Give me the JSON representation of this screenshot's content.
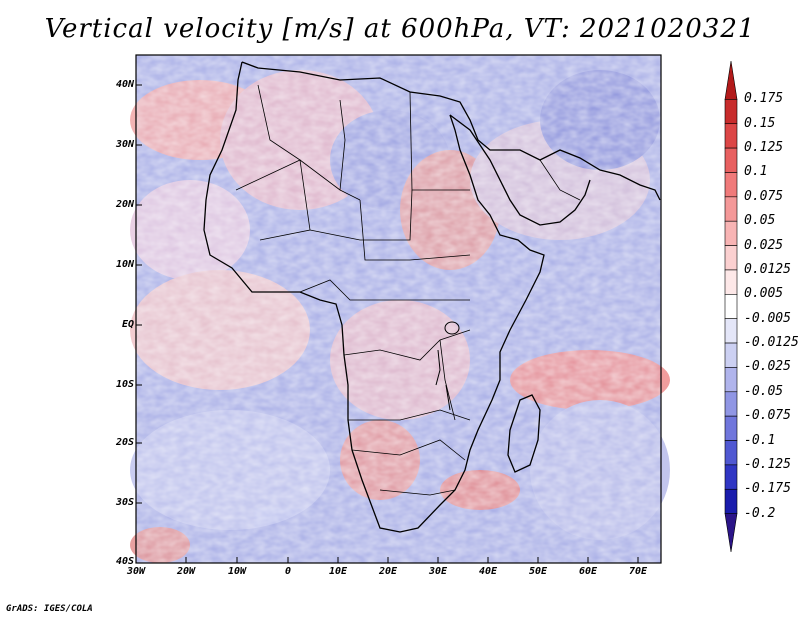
{
  "title": "Vertical velocity [m/s] at 600hPa, VT: 2021020321",
  "y_axis_labels": [
    "40N",
    "30N",
    "20N",
    "10N",
    "EQ",
    "10S",
    "20S",
    "30S",
    "40S"
  ],
  "x_axis_labels": [
    "30W",
    "20W",
    "10W",
    "0",
    "10E",
    "20E",
    "30E",
    "40E",
    "50E",
    "60E",
    "70E"
  ],
  "colorbar": {
    "levels": [
      "0.175",
      "0.15",
      "0.125",
      "0.1",
      "0.075",
      "0.05",
      "0.025",
      "0.0125",
      "0.005",
      "-0.005",
      "-0.0125",
      "-0.025",
      "-0.05",
      "-0.075",
      "-0.1",
      "-0.125",
      "-0.175",
      "-0.2"
    ],
    "colors": [
      "#b21a1a",
      "#c82c2c",
      "#dc4646",
      "#e86060",
      "#f07a7a",
      "#f49898",
      "#f8b4b4",
      "#fbd0d0",
      "#fde8e8",
      "#ffffff",
      "#e4e6f8",
      "#ccd0f2",
      "#b0b4ec",
      "#9096e4",
      "#7076dc",
      "#5058d2",
      "#3036c4",
      "#1a1cac",
      "#2b1488"
    ]
  },
  "credit": "GrADS: IGES/COLA"
}
